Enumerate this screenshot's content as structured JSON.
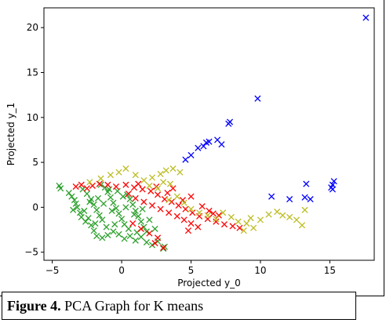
{
  "chart_data": {
    "type": "scatter",
    "title": "",
    "xlabel": "Projected y_0",
    "ylabel": "Projected y_1",
    "xlim": [
      -5.6,
      18.2
    ],
    "ylim": [
      -5.9,
      22.2
    ],
    "x_ticks": [
      -5,
      0,
      5,
      10,
      15
    ],
    "y_ticks": [
      -5,
      0,
      5,
      10,
      15,
      20
    ],
    "marker": "x",
    "grid": false,
    "legend": "none",
    "series": [
      {
        "color": "#2ca02c",
        "points": [
          [
            -4.5,
            2.4
          ],
          [
            -4.4,
            2.1
          ],
          [
            -3.8,
            1.6
          ],
          [
            -3.6,
            1.2
          ],
          [
            -3.4,
            0.8
          ],
          [
            -3.3,
            0.4
          ],
          [
            -3.5,
            -0.3
          ],
          [
            -3.0,
            -0.6
          ],
          [
            -2.9,
            -1.1
          ],
          [
            -2.6,
            -1.6
          ],
          [
            -2.2,
            -2.0
          ],
          [
            -2.0,
            -2.6
          ],
          [
            -1.8,
            -3.2
          ],
          [
            -1.4,
            -3.4
          ],
          [
            -1.0,
            -3.1
          ],
          [
            -0.6,
            -2.7
          ],
          [
            -0.2,
            -3.0
          ],
          [
            0.2,
            -3.5
          ],
          [
            0.6,
            -3.2
          ],
          [
            1.0,
            -3.7
          ],
          [
            1.4,
            -3.3
          ],
          [
            1.8,
            -3.9
          ],
          [
            2.2,
            -4.2
          ],
          [
            2.6,
            -3.8
          ],
          [
            3.0,
            -4.6
          ],
          [
            3.1,
            -4.4
          ],
          [
            -2.8,
            2.0
          ],
          [
            -2.5,
            1.5
          ],
          [
            -2.2,
            0.9
          ],
          [
            -2.0,
            0.3
          ],
          [
            -1.8,
            -0.3
          ],
          [
            -1.6,
            -0.9
          ],
          [
            -1.4,
            -1.4
          ],
          [
            -1.2,
            2.2
          ],
          [
            -1.0,
            1.7
          ],
          [
            -0.8,
            1.1
          ],
          [
            -0.6,
            0.5
          ],
          [
            -0.4,
            -0.1
          ],
          [
            -0.2,
            -0.7
          ],
          [
            0.0,
            -1.3
          ],
          [
            0.2,
            -1.9
          ],
          [
            0.4,
            1.4
          ],
          [
            0.6,
            0.9
          ],
          [
            0.8,
            0.3
          ],
          [
            1.0,
            -0.4
          ],
          [
            1.2,
            -1.0
          ],
          [
            1.4,
            -1.6
          ],
          [
            1.6,
            -2.2
          ],
          [
            1.8,
            -2.7
          ],
          [
            -1.5,
            2.5
          ],
          [
            -0.9,
            2.0
          ],
          [
            -0.3,
            1.8
          ],
          [
            0.1,
            1.2
          ],
          [
            -2.4,
            -1.2
          ],
          [
            -1.9,
            -1.8
          ],
          [
            -1.1,
            -2.2
          ],
          [
            -0.5,
            -1.9
          ],
          [
            0.5,
            -2.4
          ],
          [
            1.1,
            -2.8
          ],
          [
            -3.2,
            0.0
          ],
          [
            -2.7,
            -0.4
          ],
          [
            -2.3,
            0.6
          ],
          [
            -1.7,
            1.0
          ],
          [
            -1.3,
            0.4
          ],
          [
            -0.7,
            -0.4
          ],
          [
            0.3,
            0.0
          ],
          [
            0.9,
            -0.8
          ],
          [
            1.5,
            -0.2
          ],
          [
            2.0,
            -1.4
          ],
          [
            2.4,
            -2.4
          ]
        ]
      },
      {
        "color": "#ff0000",
        "points": [
          [
            -3.3,
            2.3
          ],
          [
            -2.9,
            2.5
          ],
          [
            -2.5,
            2.1
          ],
          [
            -2.1,
            2.4
          ],
          [
            -1.6,
            2.6
          ],
          [
            -1.0,
            2.5
          ],
          [
            -0.4,
            2.3
          ],
          [
            0.3,
            2.5
          ],
          [
            0.9,
            2.2
          ],
          [
            1.5,
            2.0
          ],
          [
            2.1,
            1.8
          ],
          [
            2.6,
            1.4
          ],
          [
            3.1,
            0.9
          ],
          [
            3.6,
            0.6
          ],
          [
            4.1,
            0.2
          ],
          [
            4.6,
            -0.2
          ],
          [
            5.1,
            -0.6
          ],
          [
            5.6,
            -1.0
          ],
          [
            6.2,
            -1.3
          ],
          [
            6.8,
            -1.6
          ],
          [
            7.4,
            -1.9
          ],
          [
            8.0,
            -2.1
          ],
          [
            8.5,
            -2.3
          ],
          [
            0.5,
            1.5
          ],
          [
            1.0,
            1.0
          ],
          [
            1.6,
            0.6
          ],
          [
            2.2,
            0.2
          ],
          [
            2.8,
            -0.2
          ],
          [
            3.4,
            -0.6
          ],
          [
            4.0,
            -1.0
          ],
          [
            4.5,
            -1.4
          ],
          [
            5.0,
            -1.8
          ],
          [
            5.5,
            -2.2
          ],
          [
            0.8,
            -1.8
          ],
          [
            1.4,
            -2.4
          ],
          [
            2.0,
            -2.9
          ],
          [
            2.6,
            -3.4
          ],
          [
            3.0,
            -4.5
          ],
          [
            2.4,
            -4.0
          ],
          [
            4.8,
            -2.6
          ],
          [
            3.7,
            2.1
          ],
          [
            5.0,
            1.2
          ],
          [
            6.3,
            -0.4
          ],
          [
            7.0,
            -0.9
          ],
          [
            1.2,
            2.6
          ],
          [
            2.5,
            2.3
          ],
          [
            3.3,
            1.6
          ],
          [
            4.4,
            0.8
          ],
          [
            5.8,
            0.1
          ],
          [
            6.6,
            -0.7
          ]
        ]
      },
      {
        "color": "#bcbd22",
        "points": [
          [
            -2.3,
            2.8
          ],
          [
            -1.5,
            3.2
          ],
          [
            -0.8,
            3.6
          ],
          [
            -0.2,
            3.9
          ],
          [
            0.3,
            4.3
          ],
          [
            1.0,
            3.6
          ],
          [
            1.6,
            3.0
          ],
          [
            2.2,
            3.3
          ],
          [
            2.8,
            3.7
          ],
          [
            3.2,
            4.1
          ],
          [
            3.7,
            4.3
          ],
          [
            4.2,
            3.9
          ],
          [
            2.0,
            2.4
          ],
          [
            2.6,
            2.1
          ],
          [
            3.0,
            2.8
          ],
          [
            3.5,
            2.6
          ],
          [
            4.5,
            0.5
          ],
          [
            5.0,
            -0.2
          ],
          [
            5.6,
            -0.6
          ],
          [
            6.2,
            -0.9
          ],
          [
            6.8,
            -1.3
          ],
          [
            7.3,
            -0.6
          ],
          [
            7.9,
            -1.1
          ],
          [
            8.4,
            -1.6
          ],
          [
            9.0,
            -1.8
          ],
          [
            9.5,
            -2.3
          ],
          [
            10.0,
            -1.4
          ],
          [
            10.6,
            -0.8
          ],
          [
            11.2,
            -0.5
          ],
          [
            11.6,
            -0.9
          ],
          [
            12.1,
            -1.1
          ],
          [
            12.6,
            -1.4
          ],
          [
            13.2,
            -0.3
          ],
          [
            13.0,
            -2.0
          ],
          [
            8.8,
            -2.6
          ],
          [
            9.3,
            -1.2
          ],
          [
            4.0,
            1.2
          ],
          [
            3.4,
            0.8
          ]
        ]
      },
      {
        "color": "#0000ff",
        "points": [
          [
            4.6,
            5.3
          ],
          [
            5.0,
            5.8
          ],
          [
            5.5,
            6.6
          ],
          [
            5.9,
            6.8
          ],
          [
            6.1,
            7.2
          ],
          [
            6.3,
            7.3
          ],
          [
            6.9,
            7.5
          ],
          [
            7.2,
            7.0
          ],
          [
            7.7,
            9.3
          ],
          [
            7.8,
            9.5
          ],
          [
            9.8,
            12.1
          ],
          [
            17.6,
            21.1
          ],
          [
            15.3,
            2.9
          ],
          [
            15.2,
            2.5
          ],
          [
            15.1,
            2.2
          ],
          [
            15.2,
            2.0
          ],
          [
            13.3,
            2.6
          ],
          [
            13.2,
            1.1
          ],
          [
            13.6,
            0.9
          ],
          [
            12.1,
            0.9
          ],
          [
            10.8,
            1.2
          ]
        ]
      }
    ]
  },
  "caption": {
    "label": "Figure 4.",
    "text": " PCA Graph for K means"
  }
}
